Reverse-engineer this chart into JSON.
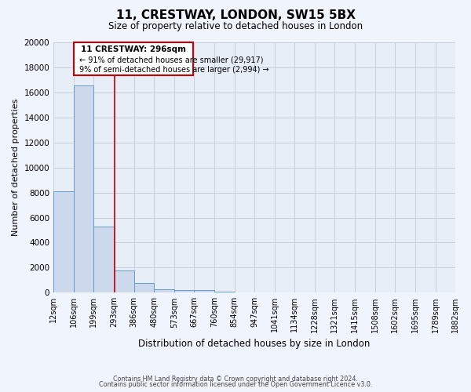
{
  "title": "11, CRESTWAY, LONDON, SW15 5BX",
  "subtitle": "Size of property relative to detached houses in London",
  "xlabel": "Distribution of detached houses by size in London",
  "ylabel": "Number of detached properties",
  "bar_color": "#ccd9ed",
  "bar_edge_color": "#6699cc",
  "background_color": "#e8eef8",
  "fig_background_color": "#f0f4fc",
  "grid_color": "#c8d0dc",
  "red_line_color": "#cc0000",
  "annotation_title": "11 CRESTWAY: 296sqm",
  "annotation_line1": "← 91% of detached houses are smaller (29,917)",
  "annotation_line2": "9% of semi-detached houses are larger (2,994) →",
  "annotation_box_color": "#ffffff",
  "annotation_box_edge_color": "#cc0000",
  "footer_line1": "Contains HM Land Registry data © Crown copyright and database right 2024.",
  "footer_line2": "Contains public sector information licensed under the Open Government Licence v3.0.",
  "bin_edges": [
    12,
    106,
    199,
    293,
    386,
    480,
    573,
    667,
    760,
    854,
    947,
    1041,
    1134,
    1228,
    1321,
    1415,
    1508,
    1602,
    1695,
    1789,
    1882
  ],
  "bin_labels": [
    "12sqm",
    "106sqm",
    "199sqm",
    "293sqm",
    "386sqm",
    "480sqm",
    "573sqm",
    "667sqm",
    "760sqm",
    "854sqm",
    "947sqm",
    "1041sqm",
    "1134sqm",
    "1228sqm",
    "1321sqm",
    "1415sqm",
    "1508sqm",
    "1602sqm",
    "1695sqm",
    "1789sqm",
    "1882sqm"
  ],
  "bar_heights": [
    8100,
    16550,
    5300,
    1800,
    800,
    300,
    230,
    200,
    100,
    0,
    0,
    0,
    0,
    0,
    0,
    0,
    0,
    0,
    0,
    0
  ],
  "red_line_x": 296,
  "ylim": [
    0,
    20000
  ],
  "yticks": [
    0,
    2000,
    4000,
    6000,
    8000,
    10000,
    12000,
    14000,
    16000,
    18000,
    20000
  ]
}
